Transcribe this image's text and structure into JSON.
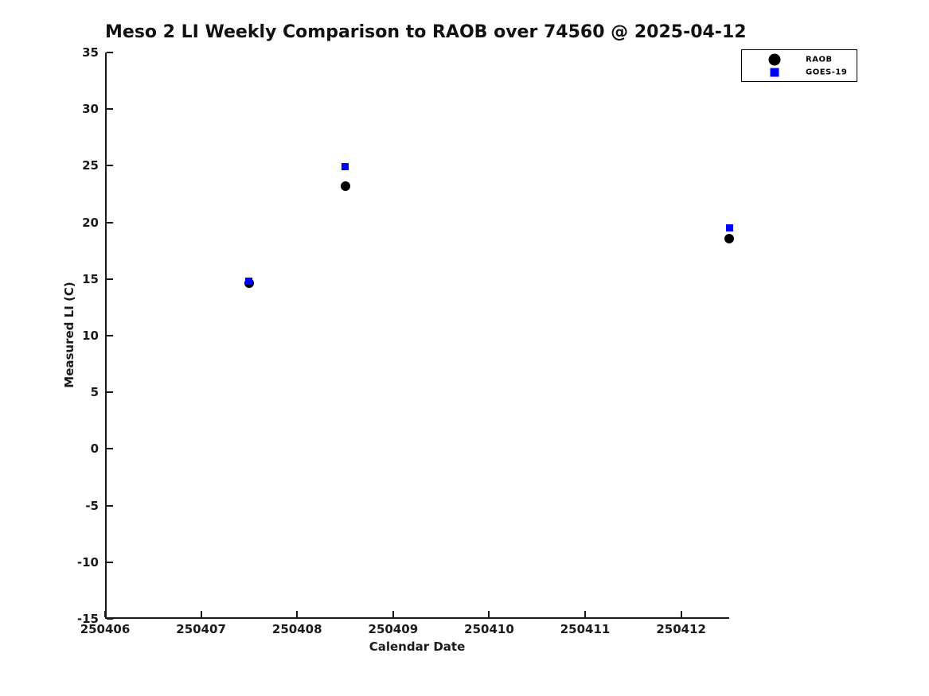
{
  "title": "Meso 2 LI Weekly Comparison to RAOB over 74560 @ 2025-04-12",
  "chart_data": {
    "type": "scatter",
    "title": "Meso 2 LI Weekly Comparison to RAOB over 74560 @ 2025-04-12",
    "xlabel": "Calendar Date",
    "ylabel": "Measured LI (C)",
    "xlim": [
      250406,
      250412.5
    ],
    "ylim": [
      -15,
      35
    ],
    "x_ticks": [
      250406,
      250407,
      250408,
      250409,
      250410,
      250411,
      250412
    ],
    "y_ticks": [
      -15,
      -10,
      -5,
      0,
      5,
      10,
      15,
      20,
      25,
      30,
      35
    ],
    "grid": false,
    "legend_position": "top-right-outside",
    "x": [
      250407.5,
      250408.5,
      250412.5
    ],
    "series": [
      {
        "name": "RAOB",
        "marker": "circle",
        "color": "#000000",
        "marker_size": 12,
        "legend_marker_size": 15,
        "values": [
          14.6,
          23.2,
          18.6
        ]
      },
      {
        "name": "GOES-19",
        "marker": "square",
        "color": "#0000ff",
        "marker_size": 9,
        "legend_marker_size": 11,
        "values": [
          14.8,
          24.9,
          19.5
        ]
      }
    ]
  },
  "colors": {
    "background": "#ffffff",
    "axis": "#1a1a1a",
    "title_text": "#111111",
    "tick_text": "#1a1a1a",
    "legend_border": "#000000"
  }
}
